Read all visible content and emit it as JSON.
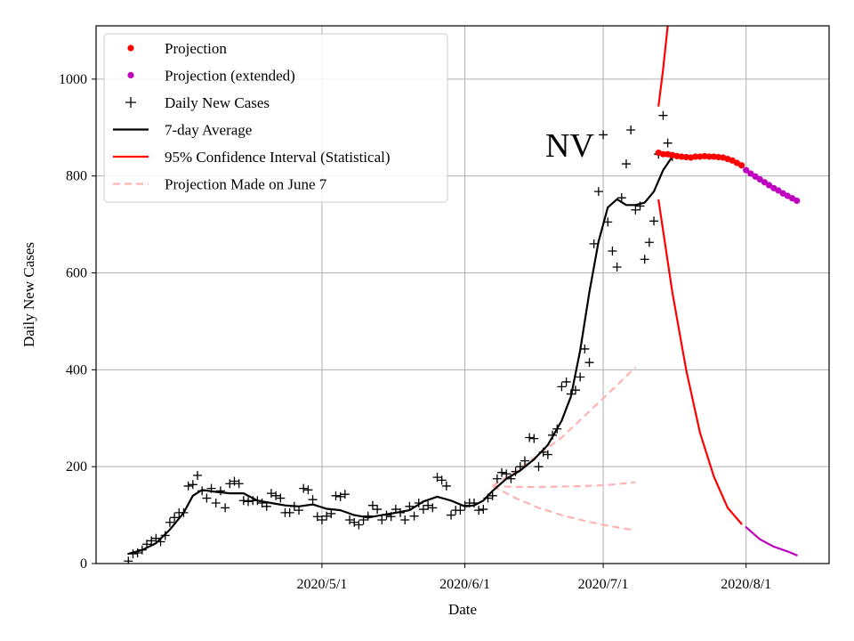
{
  "chart_data": {
    "type": "line",
    "title": "",
    "annotation": "NV",
    "xlabel": "Date",
    "ylabel": "Daily New Cases",
    "x_ticks": [
      {
        "date": "2020-05-01",
        "label": "2020/5/1"
      },
      {
        "date": "2020-06-01",
        "label": "2020/6/1"
      },
      {
        "date": "2020-07-01",
        "label": "2020/7/1"
      },
      {
        "date": "2020-08-01",
        "label": "2020/8/1"
      }
    ],
    "y_ticks": [
      0,
      200,
      400,
      600,
      800,
      1000
    ],
    "xlim": [
      "2020-03-13",
      "2020-08-19"
    ],
    "ylim": [
      0,
      1110
    ],
    "grid": true,
    "legend_position": "top-left",
    "legend": [
      {
        "label": "Projection",
        "style": "dot",
        "color": "#ff0000"
      },
      {
        "label": "Projection (extended)",
        "style": "dot",
        "color": "#bf00bf"
      },
      {
        "label": "Daily New Cases",
        "style": "plus",
        "color": "#000000"
      },
      {
        "label": "7-day Average",
        "style": "line",
        "color": "#000000"
      },
      {
        "label": "95% Confidence Interval (Statistical)",
        "style": "line",
        "color": "#ff0000"
      },
      {
        "label": "Projection Made on June 7",
        "style": "dashed",
        "color": "#ffb3b3"
      }
    ],
    "series": [
      {
        "name": "Daily New Cases",
        "kind": "plus",
        "color": "#000000",
        "points": [
          [
            "2020-03-20",
            5
          ],
          [
            "2020-03-21",
            20
          ],
          [
            "2020-03-22",
            22
          ],
          [
            "2020-03-23",
            28
          ],
          [
            "2020-03-24",
            40
          ],
          [
            "2020-03-25",
            47
          ],
          [
            "2020-03-26",
            52
          ],
          [
            "2020-03-27",
            45
          ],
          [
            "2020-03-28",
            58
          ],
          [
            "2020-03-29",
            85
          ],
          [
            "2020-03-30",
            95
          ],
          [
            "2020-03-31",
            105
          ],
          [
            "2020-04-01",
            105
          ],
          [
            "2020-04-02",
            160
          ],
          [
            "2020-04-03",
            163
          ],
          [
            "2020-04-04",
            182
          ],
          [
            "2020-04-05",
            150
          ],
          [
            "2020-04-06",
            135
          ],
          [
            "2020-04-07",
            155
          ],
          [
            "2020-04-08",
            125
          ],
          [
            "2020-04-09",
            150
          ],
          [
            "2020-04-10",
            115
          ],
          [
            "2020-04-11",
            165
          ],
          [
            "2020-04-12",
            170
          ],
          [
            "2020-04-13",
            165
          ],
          [
            "2020-04-14",
            130
          ],
          [
            "2020-04-15",
            128
          ],
          [
            "2020-04-16",
            130
          ],
          [
            "2020-04-17",
            130
          ],
          [
            "2020-04-18",
            125
          ],
          [
            "2020-04-19",
            118
          ],
          [
            "2020-04-20",
            145
          ],
          [
            "2020-04-21",
            140
          ],
          [
            "2020-04-22",
            135
          ],
          [
            "2020-04-23",
            105
          ],
          [
            "2020-04-24",
            105
          ],
          [
            "2020-04-25",
            118
          ],
          [
            "2020-04-26",
            110
          ],
          [
            "2020-04-27",
            155
          ],
          [
            "2020-04-28",
            152
          ],
          [
            "2020-04-29",
            132
          ],
          [
            "2020-04-30",
            97
          ],
          [
            "2020-05-01",
            90
          ],
          [
            "2020-05-02",
            98
          ],
          [
            "2020-05-03",
            103
          ],
          [
            "2020-05-04",
            140
          ],
          [
            "2020-05-05",
            138
          ],
          [
            "2020-05-06",
            143
          ],
          [
            "2020-05-07",
            90
          ],
          [
            "2020-05-08",
            85
          ],
          [
            "2020-05-09",
            80
          ],
          [
            "2020-05-10",
            90
          ],
          [
            "2020-05-11",
            98
          ],
          [
            "2020-05-12",
            120
          ],
          [
            "2020-05-13",
            112
          ],
          [
            "2020-05-14",
            90
          ],
          [
            "2020-05-15",
            100
          ],
          [
            "2020-05-16",
            97
          ],
          [
            "2020-05-17",
            112
          ],
          [
            "2020-05-18",
            105
          ],
          [
            "2020-05-19",
            90
          ],
          [
            "2020-05-20",
            118
          ],
          [
            "2020-05-21",
            98
          ],
          [
            "2020-05-22",
            125
          ],
          [
            "2020-05-23",
            112
          ],
          [
            "2020-05-24",
            120
          ],
          [
            "2020-05-25",
            115
          ],
          [
            "2020-05-26",
            178
          ],
          [
            "2020-05-27",
            172
          ],
          [
            "2020-05-28",
            160
          ],
          [
            "2020-05-29",
            100
          ],
          [
            "2020-05-30",
            110
          ],
          [
            "2020-05-31",
            110
          ],
          [
            "2020-06-01",
            120
          ],
          [
            "2020-06-02",
            125
          ],
          [
            "2020-06-03",
            125
          ],
          [
            "2020-06-04",
            110
          ],
          [
            "2020-06-05",
            112
          ],
          [
            "2020-06-06",
            135
          ],
          [
            "2020-06-07",
            140
          ],
          [
            "2020-06-08",
            175
          ],
          [
            "2020-06-09",
            188
          ],
          [
            "2020-06-10",
            185
          ],
          [
            "2020-06-11",
            175
          ],
          [
            "2020-06-12",
            190
          ],
          [
            "2020-06-13",
            200
          ],
          [
            "2020-06-14",
            212
          ],
          [
            "2020-06-15",
            260
          ],
          [
            "2020-06-16",
            258
          ],
          [
            "2020-06-17",
            200
          ],
          [
            "2020-06-18",
            230
          ],
          [
            "2020-06-19",
            225
          ],
          [
            "2020-06-20",
            265
          ],
          [
            "2020-06-21",
            278
          ],
          [
            "2020-06-22",
            365
          ],
          [
            "2020-06-23",
            375
          ],
          [
            "2020-06-24",
            350
          ],
          [
            "2020-06-25",
            358
          ],
          [
            "2020-06-26",
            385
          ],
          [
            "2020-06-27",
            443
          ],
          [
            "2020-06-28",
            415
          ],
          [
            "2020-06-29",
            660
          ],
          [
            "2020-06-30",
            768
          ],
          [
            "2020-07-01",
            885
          ],
          [
            "2020-07-02",
            705
          ],
          [
            "2020-07-03",
            645
          ],
          [
            "2020-07-04",
            612
          ],
          [
            "2020-07-05",
            755
          ],
          [
            "2020-07-06",
            825
          ],
          [
            "2020-07-07",
            895
          ],
          [
            "2020-07-08",
            730
          ],
          [
            "2020-07-09",
            738
          ],
          [
            "2020-07-10",
            628
          ],
          [
            "2020-07-11",
            663
          ],
          [
            "2020-07-12",
            707
          ],
          [
            "2020-07-13",
            845
          ],
          [
            "2020-07-14",
            925
          ],
          [
            "2020-07-15",
            868
          ],
          [
            "2020-07-16",
            840
          ]
        ]
      },
      {
        "name": "7-day Average",
        "kind": "line",
        "color": "#000000",
        "points": [
          [
            "2020-03-20",
            20
          ],
          [
            "2020-03-23",
            28
          ],
          [
            "2020-03-26",
            42
          ],
          [
            "2020-03-29",
            70
          ],
          [
            "2020-04-01",
            105
          ],
          [
            "2020-04-03",
            140
          ],
          [
            "2020-04-05",
            152
          ],
          [
            "2020-04-08",
            148
          ],
          [
            "2020-04-11",
            145
          ],
          [
            "2020-04-14",
            145
          ],
          [
            "2020-04-17",
            130
          ],
          [
            "2020-04-20",
            125
          ],
          [
            "2020-04-23",
            120
          ],
          [
            "2020-04-26",
            118
          ],
          [
            "2020-04-29",
            122
          ],
          [
            "2020-05-02",
            113
          ],
          [
            "2020-05-05",
            110
          ],
          [
            "2020-05-08",
            100
          ],
          [
            "2020-05-11",
            95
          ],
          [
            "2020-05-14",
            100
          ],
          [
            "2020-05-17",
            105
          ],
          [
            "2020-05-20",
            110
          ],
          [
            "2020-05-23",
            128
          ],
          [
            "2020-05-26",
            138
          ],
          [
            "2020-05-29",
            130
          ],
          [
            "2020-06-01",
            118
          ],
          [
            "2020-06-03",
            120
          ],
          [
            "2020-06-05",
            130
          ],
          [
            "2020-06-07",
            150
          ],
          [
            "2020-06-10",
            175
          ],
          [
            "2020-06-13",
            192
          ],
          [
            "2020-06-16",
            215
          ],
          [
            "2020-06-19",
            245
          ],
          [
            "2020-06-22",
            295
          ],
          [
            "2020-06-24",
            345
          ],
          [
            "2020-06-26",
            440
          ],
          [
            "2020-06-28",
            560
          ],
          [
            "2020-06-30",
            665
          ],
          [
            "2020-07-02",
            735
          ],
          [
            "2020-07-04",
            752
          ],
          [
            "2020-07-06",
            740
          ],
          [
            "2020-07-08",
            740
          ],
          [
            "2020-07-10",
            745
          ],
          [
            "2020-07-12",
            768
          ],
          [
            "2020-07-14",
            812
          ],
          [
            "2020-07-16",
            840
          ]
        ]
      },
      {
        "name": "Projection",
        "kind": "dot",
        "color": "#ff0000",
        "points": [
          [
            "2020-07-13",
            848
          ],
          [
            "2020-07-14",
            845
          ],
          [
            "2020-07-15",
            845
          ],
          [
            "2020-07-16",
            843
          ],
          [
            "2020-07-17",
            841
          ],
          [
            "2020-07-18",
            840
          ],
          [
            "2020-07-19",
            839
          ],
          [
            "2020-07-20",
            838
          ],
          [
            "2020-07-21",
            840
          ],
          [
            "2020-07-22",
            840
          ],
          [
            "2020-07-23",
            841
          ],
          [
            "2020-07-24",
            840
          ],
          [
            "2020-07-25",
            840
          ],
          [
            "2020-07-26",
            839
          ],
          [
            "2020-07-27",
            838
          ],
          [
            "2020-07-28",
            835
          ],
          [
            "2020-07-29",
            832
          ],
          [
            "2020-07-30",
            827
          ],
          [
            "2020-07-31",
            822
          ]
        ]
      },
      {
        "name": "Projection (extended)",
        "kind": "dot",
        "color": "#bf00bf",
        "points": [
          [
            "2020-08-01",
            812
          ],
          [
            "2020-08-02",
            805
          ],
          [
            "2020-08-03",
            799
          ],
          [
            "2020-08-04",
            793
          ],
          [
            "2020-08-05",
            787
          ],
          [
            "2020-08-06",
            781
          ],
          [
            "2020-08-07",
            775
          ],
          [
            "2020-08-08",
            770
          ],
          [
            "2020-08-09",
            764
          ],
          [
            "2020-08-10",
            759
          ],
          [
            "2020-08-11",
            754
          ],
          [
            "2020-08-12",
            749
          ]
        ]
      },
      {
        "name": "95% Confidence Interval (Statistical)",
        "kind": "line",
        "color": "#ff0000",
        "segments": [
          [
            [
              "2020-07-13",
              945
            ],
            [
              "2020-07-14",
              1020
            ],
            [
              "2020-07-15",
              1110
            ]
          ],
          [
            [
              "2020-07-13",
              750
            ],
            [
              "2020-07-16",
              560
            ],
            [
              "2020-07-19",
              400
            ],
            [
              "2020-07-22",
              270
            ],
            [
              "2020-07-25",
              180
            ],
            [
              "2020-07-28",
              115
            ],
            [
              "2020-07-31",
              82
            ]
          ]
        ]
      },
      {
        "name": "95% Confidence Interval (extended)",
        "kind": "line",
        "color": "#bf00bf",
        "segments": [
          [
            [
              "2020-08-01",
              75
            ],
            [
              "2020-08-04",
              50
            ],
            [
              "2020-08-07",
              35
            ],
            [
              "2020-08-10",
              25
            ],
            [
              "2020-08-12",
              17
            ]
          ]
        ]
      },
      {
        "name": "Projection Made on June 7",
        "kind": "dashed",
        "color": "#ffb3b3",
        "segments": [
          [
            [
              "2020-06-07",
              160
            ],
            [
              "2020-06-12",
              190
            ],
            [
              "2020-06-17",
              225
            ],
            [
              "2020-06-22",
              260
            ],
            [
              "2020-06-27",
              305
            ],
            [
              "2020-07-02",
              350
            ],
            [
              "2020-07-08",
              405
            ]
          ],
          [
            [
              "2020-06-07",
              160
            ],
            [
              "2020-06-12",
              158
            ],
            [
              "2020-06-17",
              158
            ],
            [
              "2020-06-22",
              159
            ],
            [
              "2020-06-27",
              160
            ],
            [
              "2020-07-02",
              162
            ],
            [
              "2020-07-08",
              168
            ]
          ],
          [
            [
              "2020-06-07",
              160
            ],
            [
              "2020-06-12",
              135
            ],
            [
              "2020-06-17",
              115
            ],
            [
              "2020-06-22",
              100
            ],
            [
              "2020-06-27",
              88
            ],
            [
              "2020-07-02",
              78
            ],
            [
              "2020-07-07",
              70
            ]
          ]
        ]
      }
    ]
  }
}
